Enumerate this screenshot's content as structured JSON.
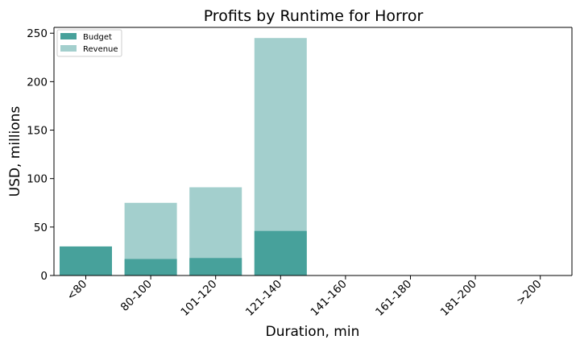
{
  "chart_data": {
    "type": "bar",
    "title": "Profits by Runtime for Horror",
    "xlabel": "Duration, min",
    "ylabel": "USD, millions",
    "categories": [
      "<80",
      "80-100",
      "101-120",
      "121-140",
      "141-160",
      "161-180",
      "181-200",
      ">200"
    ],
    "ylim": [
      0,
      250
    ],
    "yticks": [
      0,
      50,
      100,
      150,
      200,
      250
    ],
    "grid": false,
    "legend_position": "top-left",
    "series": [
      {
        "name": "Revenue",
        "color": "#a3cfcd",
        "values": [
          0,
          75,
          91,
          245,
          0,
          0,
          0,
          0
        ]
      },
      {
        "name": "Budget",
        "color": "#47a19b",
        "values": [
          30,
          17,
          18,
          46,
          0,
          0,
          0,
          0
        ]
      }
    ],
    "legend": [
      {
        "name": "Budget",
        "color": "#47a19b"
      },
      {
        "name": "Revenue",
        "color": "#a3cfcd"
      }
    ]
  }
}
